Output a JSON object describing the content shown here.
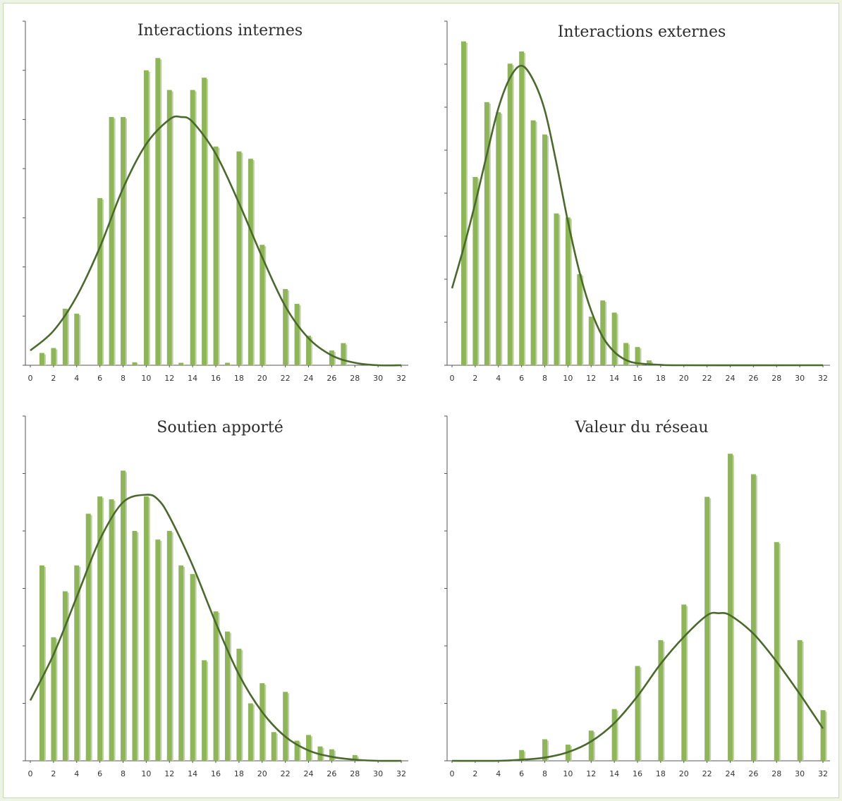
{
  "chart_data": [
    {
      "type": "bar",
      "title": "Interactions internes",
      "xlabel": "",
      "ylabel": "",
      "xlim": [
        0,
        32
      ],
      "xticks": [
        "0",
        "2",
        "4",
        "6",
        "8",
        "10",
        "12",
        "14",
        "16",
        "18",
        "20",
        "22",
        "24",
        "26",
        "28",
        "30",
        "32"
      ],
      "yticks": 7,
      "bars": [
        {
          "x": 1,
          "y": 0.25
        },
        {
          "x": 2,
          "y": 0.35
        },
        {
          "x": 3,
          "y": 1.15
        },
        {
          "x": 4,
          "y": 1.05
        },
        {
          "x": 6,
          "y": 3.4
        },
        {
          "x": 7,
          "y": 5.05
        },
        {
          "x": 8,
          "y": 5.05
        },
        {
          "x": 9,
          "y": 0.06
        },
        {
          "x": 10,
          "y": 6.0
        },
        {
          "x": 11,
          "y": 6.25
        },
        {
          "x": 12,
          "y": 5.6
        },
        {
          "x": 13,
          "y": 0.05
        },
        {
          "x": 14,
          "y": 5.6
        },
        {
          "x": 15,
          "y": 5.85
        },
        {
          "x": 16,
          "y": 4.45
        },
        {
          "x": 17,
          "y": 0.05
        },
        {
          "x": 18,
          "y": 4.35
        },
        {
          "x": 19,
          "y": 4.2
        },
        {
          "x": 20,
          "y": 2.45
        },
        {
          "x": 22,
          "y": 1.55
        },
        {
          "x": 23,
          "y": 1.25
        },
        {
          "x": 24,
          "y": 0.6
        },
        {
          "x": 26,
          "y": 0.3
        },
        {
          "x": 27,
          "y": 0.45
        }
      ],
      "fit": [
        [
          0,
          0.3
        ],
        [
          2,
          0.7
        ],
        [
          4,
          1.4
        ],
        [
          6,
          2.4
        ],
        [
          8,
          3.6
        ],
        [
          10,
          4.5
        ],
        [
          12,
          5.0
        ],
        [
          13,
          5.05
        ],
        [
          14,
          4.95
        ],
        [
          16,
          4.3
        ],
        [
          18,
          3.3
        ],
        [
          20,
          2.2
        ],
        [
          22,
          1.2
        ],
        [
          24,
          0.55
        ],
        [
          26,
          0.2
        ],
        [
          28,
          0.05
        ],
        [
          30,
          0.0
        ],
        [
          32,
          0.0
        ]
      ],
      "ylim": [
        0,
        7
      ]
    },
    {
      "type": "bar",
      "title": "Interactions externes",
      "xlabel": "",
      "ylabel": "",
      "xlim": [
        0,
        32
      ],
      "xticks": [
        "0",
        "2",
        "4",
        "6",
        "8",
        "10",
        "12",
        "14",
        "16",
        "18",
        "20",
        "22",
        "24",
        "26",
        "28",
        "30",
        "32"
      ],
      "yticks": 8,
      "bars": [
        {
          "x": 1,
          "y": 8.0
        },
        {
          "x": 2,
          "y": 4.65
        },
        {
          "x": 3,
          "y": 6.5
        },
        {
          "x": 4,
          "y": 6.25
        },
        {
          "x": 5,
          "y": 7.45
        },
        {
          "x": 6,
          "y": 7.75
        },
        {
          "x": 7,
          "y": 6.05
        },
        {
          "x": 8,
          "y": 5.7
        },
        {
          "x": 9,
          "y": 3.75
        },
        {
          "x": 10,
          "y": 3.65
        },
        {
          "x": 11,
          "y": 2.25
        },
        {
          "x": 12,
          "y": 1.2
        },
        {
          "x": 13,
          "y": 1.6
        },
        {
          "x": 14,
          "y": 1.3
        },
        {
          "x": 15,
          "y": 0.55
        },
        {
          "x": 16,
          "y": 0.45
        },
        {
          "x": 17,
          "y": 0.12
        }
      ],
      "fit": [
        [
          0,
          1.9
        ],
        [
          1,
          2.9
        ],
        [
          2,
          4.0
        ],
        [
          3,
          5.2
        ],
        [
          4,
          6.35
        ],
        [
          5,
          7.1
        ],
        [
          6,
          7.4
        ],
        [
          7,
          7.05
        ],
        [
          8,
          6.3
        ],
        [
          9,
          5.0
        ],
        [
          10,
          3.55
        ],
        [
          11,
          2.3
        ],
        [
          12,
          1.35
        ],
        [
          13,
          0.7
        ],
        [
          14,
          0.33
        ],
        [
          15,
          0.13
        ],
        [
          16,
          0.05
        ],
        [
          18,
          0.01
        ],
        [
          20,
          0.0
        ],
        [
          32,
          0.0
        ]
      ],
      "ylim": [
        0,
        8.5
      ]
    },
    {
      "type": "bar",
      "title": "Soutien apporté",
      "xlabel": "",
      "ylabel": "",
      "xlim": [
        0,
        32
      ],
      "xticks": [
        "0",
        "2",
        "4",
        "6",
        "8",
        "10",
        "12",
        "14",
        "16",
        "18",
        "20",
        "22",
        "24",
        "26",
        "28",
        "30",
        "32"
      ],
      "yticks": 6,
      "bars": [
        {
          "x": 1,
          "y": 3.4
        },
        {
          "x": 2,
          "y": 2.15
        },
        {
          "x": 3,
          "y": 2.95
        },
        {
          "x": 4,
          "y": 3.4
        },
        {
          "x": 5,
          "y": 4.3
        },
        {
          "x": 6,
          "y": 4.6
        },
        {
          "x": 7,
          "y": 4.55
        },
        {
          "x": 8,
          "y": 5.05
        },
        {
          "x": 9,
          "y": 4.0
        },
        {
          "x": 10,
          "y": 4.6
        },
        {
          "x": 11,
          "y": 3.85
        },
        {
          "x": 12,
          "y": 4.0
        },
        {
          "x": 13,
          "y": 3.4
        },
        {
          "x": 14,
          "y": 3.25
        },
        {
          "x": 15,
          "y": 1.75
        },
        {
          "x": 16,
          "y": 2.6
        },
        {
          "x": 17,
          "y": 2.25
        },
        {
          "x": 18,
          "y": 1.95
        },
        {
          "x": 19,
          "y": 1.0
        },
        {
          "x": 20,
          "y": 1.35
        },
        {
          "x": 21,
          "y": 0.5
        },
        {
          "x": 22,
          "y": 1.2
        },
        {
          "x": 23,
          "y": 0.35
        },
        {
          "x": 24,
          "y": 0.45
        },
        {
          "x": 25,
          "y": 0.25
        },
        {
          "x": 26,
          "y": 0.2
        },
        {
          "x": 28,
          "y": 0.1
        }
      ],
      "fit": [
        [
          0,
          1.05
        ],
        [
          2,
          1.85
        ],
        [
          4,
          2.85
        ],
        [
          6,
          3.85
        ],
        [
          8,
          4.5
        ],
        [
          10,
          4.63
        ],
        [
          11,
          4.55
        ],
        [
          12,
          4.25
        ],
        [
          14,
          3.4
        ],
        [
          16,
          2.4
        ],
        [
          18,
          1.5
        ],
        [
          20,
          0.85
        ],
        [
          22,
          0.42
        ],
        [
          24,
          0.18
        ],
        [
          26,
          0.07
        ],
        [
          28,
          0.02
        ],
        [
          30,
          0.0
        ],
        [
          32,
          0.0
        ]
      ],
      "ylim": [
        0,
        6
      ]
    },
    {
      "type": "bar",
      "title": "Valeur du réseau",
      "xlabel": "",
      "ylabel": "",
      "xlim": [
        0,
        32
      ],
      "xticks": [
        "0",
        "2",
        "4",
        "6",
        "8",
        "10",
        "12",
        "14",
        "16",
        "18",
        "20",
        "22",
        "24",
        "26",
        "28",
        "30",
        "32"
      ],
      "yticks": 6,
      "bars": [
        {
          "x": 6,
          "y": 0.1
        },
        {
          "x": 8,
          "y": 0.2
        },
        {
          "x": 10,
          "y": 0.15
        },
        {
          "x": 12,
          "y": 0.28
        },
        {
          "x": 14,
          "y": 0.48
        },
        {
          "x": 16,
          "y": 0.88
        },
        {
          "x": 18,
          "y": 1.12
        },
        {
          "x": 20,
          "y": 1.45
        },
        {
          "x": 22,
          "y": 2.45
        },
        {
          "x": 24,
          "y": 2.85
        },
        {
          "x": 26,
          "y": 2.66
        },
        {
          "x": 28,
          "y": 2.03
        },
        {
          "x": 30,
          "y": 1.12
        },
        {
          "x": 32,
          "y": 0.47
        }
      ],
      "fit": [
        [
          0,
          0.0
        ],
        [
          4,
          0.0
        ],
        [
          6,
          0.01
        ],
        [
          8,
          0.03
        ],
        [
          10,
          0.08
        ],
        [
          12,
          0.18
        ],
        [
          14,
          0.35
        ],
        [
          16,
          0.6
        ],
        [
          18,
          0.9
        ],
        [
          20,
          1.15
        ],
        [
          22,
          1.35
        ],
        [
          23,
          1.37
        ],
        [
          24,
          1.35
        ],
        [
          26,
          1.18
        ],
        [
          28,
          0.92
        ],
        [
          30,
          0.62
        ],
        [
          32,
          0.3
        ]
      ],
      "ylim": [
        0,
        3.2
      ]
    }
  ],
  "colors": {
    "bar": "#8db654",
    "bar_shadow": "#c8ccc0",
    "fit_line": "#4a6a2c",
    "axis": "#555555"
  }
}
